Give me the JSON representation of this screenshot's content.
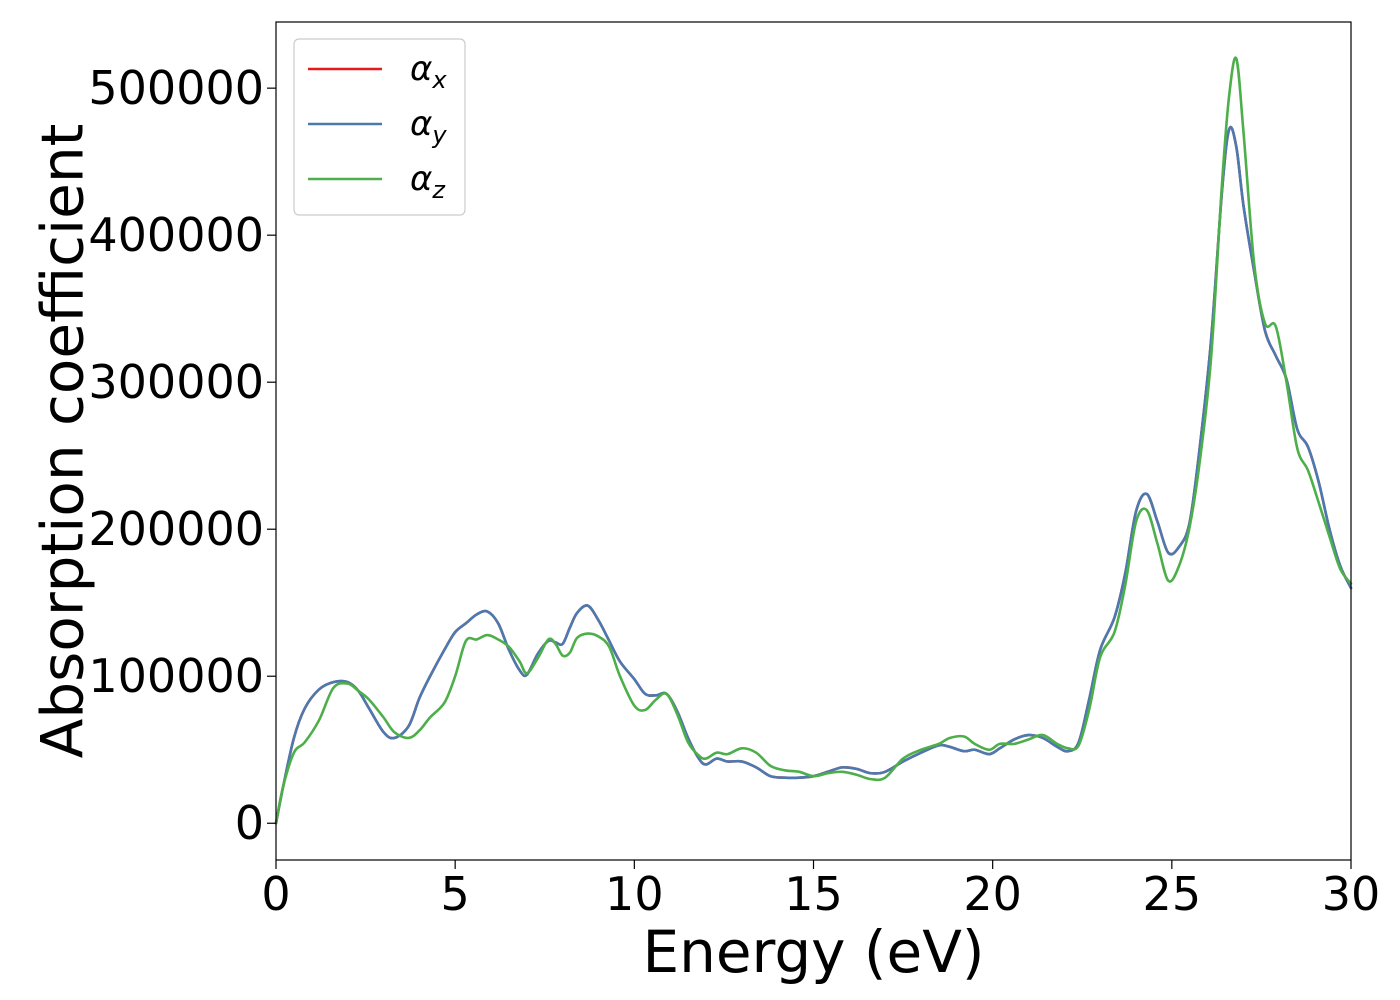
{
  "chart_data": {
    "type": "line",
    "title": "",
    "xlabel": "Energy (eV)",
    "ylabel": "Absorption coefficient",
    "xlim": [
      0,
      30
    ],
    "ylim": [
      -25000,
      545000
    ],
    "x_ticks": [
      0,
      5,
      10,
      15,
      20,
      25,
      30
    ],
    "x_tick_labels": [
      "0",
      "5",
      "10",
      "15",
      "20",
      "25",
      "30"
    ],
    "y_ticks": [
      0,
      100000,
      200000,
      300000,
      400000,
      500000
    ],
    "y_tick_labels": [
      "0",
      "100000",
      "200000",
      "300000",
      "400000",
      "500000"
    ],
    "grid": false,
    "legend_position": "top-left",
    "series": [
      {
        "name": "α",
        "subscript": "x",
        "color": "#e41a1c",
        "x": [
          0,
          0.2,
          0.5,
          0.8,
          1.2,
          1.6,
          2.0,
          2.3,
          2.6,
          3.0,
          3.3,
          3.7,
          4.0,
          4.3,
          4.7,
          5.0,
          5.3,
          5.6,
          5.9,
          6.2,
          6.5,
          6.8,
          7.0,
          7.3,
          7.6,
          7.8,
          8.0,
          8.2,
          8.4,
          8.7,
          9.0,
          9.3,
          9.6,
          10.0,
          10.3,
          10.6,
          10.9,
          11.2,
          11.5,
          11.8,
          12.0,
          12.3,
          12.6,
          13.0,
          13.4,
          13.8,
          14.2,
          14.6,
          15.0,
          15.4,
          15.8,
          16.2,
          16.6,
          17.0,
          17.5,
          18.0,
          18.5,
          18.8,
          19.2,
          19.5,
          19.9,
          20.2,
          20.6,
          21.0,
          21.4,
          21.8,
          22.1,
          22.4,
          22.7,
          23.0,
          23.4,
          23.7,
          24.0,
          24.3,
          24.6,
          24.9,
          25.2,
          25.5,
          25.8,
          26.1,
          26.4,
          26.6,
          26.8,
          27.0,
          27.3,
          27.6,
          27.9,
          28.2,
          28.5,
          28.8,
          29.1,
          29.4,
          29.7,
          30.0
        ],
        "values": [
          0,
          25000,
          58000,
          78000,
          91000,
          96000,
          96000,
          90000,
          78000,
          62000,
          58000,
          66000,
          85000,
          100000,
          118000,
          130000,
          136000,
          142000,
          144000,
          136000,
          118000,
          104000,
          101000,
          115000,
          124000,
          123000,
          122000,
          133000,
          143000,
          148000,
          138000,
          124000,
          110000,
          98000,
          88000,
          87000,
          88000,
          76000,
          58000,
          44000,
          40000,
          44000,
          42000,
          42000,
          38000,
          32000,
          31000,
          31000,
          32000,
          35000,
          38000,
          37000,
          34000,
          35000,
          42000,
          48000,
          53000,
          52000,
          49000,
          50000,
          47000,
          51000,
          57000,
          60000,
          58000,
          52000,
          49000,
          55000,
          85000,
          118000,
          140000,
          170000,
          212000,
          224000,
          205000,
          184000,
          188000,
          205000,
          260000,
          330000,
          430000,
          472000,
          460000,
          420000,
          375000,
          335000,
          318000,
          302000,
          268000,
          256000,
          232000,
          200000,
          175000,
          160000
        ]
      },
      {
        "name": "α",
        "subscript": "y",
        "color": "#4a7ab0",
        "x": [
          0,
          0.2,
          0.5,
          0.8,
          1.2,
          1.6,
          2.0,
          2.3,
          2.6,
          3.0,
          3.3,
          3.7,
          4.0,
          4.3,
          4.7,
          5.0,
          5.3,
          5.6,
          5.9,
          6.2,
          6.5,
          6.8,
          7.0,
          7.3,
          7.6,
          7.8,
          8.0,
          8.2,
          8.4,
          8.7,
          9.0,
          9.3,
          9.6,
          10.0,
          10.3,
          10.6,
          10.9,
          11.2,
          11.5,
          11.8,
          12.0,
          12.3,
          12.6,
          13.0,
          13.4,
          13.8,
          14.2,
          14.6,
          15.0,
          15.4,
          15.8,
          16.2,
          16.6,
          17.0,
          17.5,
          18.0,
          18.5,
          18.8,
          19.2,
          19.5,
          19.9,
          20.2,
          20.6,
          21.0,
          21.4,
          21.8,
          22.1,
          22.4,
          22.7,
          23.0,
          23.4,
          23.7,
          24.0,
          24.3,
          24.6,
          24.9,
          25.2,
          25.5,
          25.8,
          26.1,
          26.4,
          26.6,
          26.8,
          27.0,
          27.3,
          27.6,
          27.9,
          28.2,
          28.5,
          28.8,
          29.1,
          29.4,
          29.7,
          30.0
        ],
        "values": [
          0,
          25000,
          58000,
          78000,
          91000,
          96000,
          96000,
          90000,
          78000,
          62000,
          58000,
          66000,
          85000,
          100000,
          118000,
          130000,
          136000,
          142000,
          144000,
          136000,
          118000,
          104000,
          101000,
          115000,
          124000,
          123000,
          122000,
          133000,
          143000,
          148000,
          138000,
          124000,
          110000,
          98000,
          88000,
          87000,
          88000,
          76000,
          58000,
          44000,
          40000,
          44000,
          42000,
          42000,
          38000,
          32000,
          31000,
          31000,
          32000,
          35000,
          38000,
          37000,
          34000,
          35000,
          42000,
          48000,
          53000,
          52000,
          49000,
          50000,
          47000,
          51000,
          57000,
          60000,
          58000,
          52000,
          49000,
          55000,
          85000,
          118000,
          140000,
          170000,
          212000,
          224000,
          205000,
          184000,
          188000,
          205000,
          260000,
          330000,
          430000,
          472000,
          460000,
          420000,
          375000,
          335000,
          318000,
          302000,
          268000,
          256000,
          232000,
          200000,
          175000,
          160000
        ]
      },
      {
        "name": "α",
        "subscript": "z",
        "color": "#4daf4a",
        "x": [
          0,
          0.2,
          0.5,
          0.8,
          1.2,
          1.6,
          2.0,
          2.3,
          2.6,
          3.0,
          3.3,
          3.7,
          4.0,
          4.3,
          4.7,
          5.0,
          5.3,
          5.6,
          5.9,
          6.2,
          6.5,
          6.8,
          7.0,
          7.3,
          7.6,
          7.8,
          8.0,
          8.2,
          8.4,
          8.7,
          9.0,
          9.3,
          9.6,
          10.0,
          10.3,
          10.6,
          10.9,
          11.2,
          11.5,
          11.8,
          12.0,
          12.3,
          12.6,
          13.0,
          13.4,
          13.8,
          14.2,
          14.6,
          15.0,
          15.4,
          15.8,
          16.2,
          16.6,
          17.0,
          17.5,
          18.0,
          18.5,
          18.8,
          19.2,
          19.5,
          19.9,
          20.2,
          20.6,
          21.0,
          21.4,
          21.8,
          22.1,
          22.4,
          22.7,
          23.0,
          23.4,
          23.7,
          24.0,
          24.3,
          24.6,
          24.9,
          25.2,
          25.5,
          25.8,
          26.1,
          26.4,
          26.6,
          26.8,
          27.0,
          27.3,
          27.6,
          27.9,
          28.2,
          28.5,
          28.8,
          29.1,
          29.4,
          29.7,
          30.0
        ],
        "values": [
          0,
          25000,
          48000,
          55000,
          70000,
          92000,
          95000,
          90000,
          84000,
          72000,
          62000,
          58000,
          63000,
          72000,
          82000,
          100000,
          124000,
          125000,
          128000,
          125000,
          120000,
          110000,
          102000,
          112000,
          125000,
          122000,
          114000,
          116000,
          126000,
          129000,
          127000,
          120000,
          100000,
          80000,
          77000,
          84000,
          88000,
          74000,
          55000,
          46000,
          44000,
          48000,
          47000,
          51000,
          48000,
          39000,
          36000,
          35000,
          32000,
          34000,
          35000,
          33000,
          30000,
          31000,
          44000,
          50000,
          54000,
          58000,
          59000,
          54000,
          50000,
          54000,
          54000,
          57000,
          60000,
          54000,
          51000,
          53000,
          78000,
          113000,
          130000,
          162000,
          205000,
          213000,
          190000,
          165000,
          175000,
          202000,
          250000,
          318000,
          435000,
          495000,
          520000,
          470000,
          380000,
          340000,
          338000,
          300000,
          255000,
          240000,
          218000,
          195000,
          173000,
          163000
        ]
      }
    ]
  }
}
